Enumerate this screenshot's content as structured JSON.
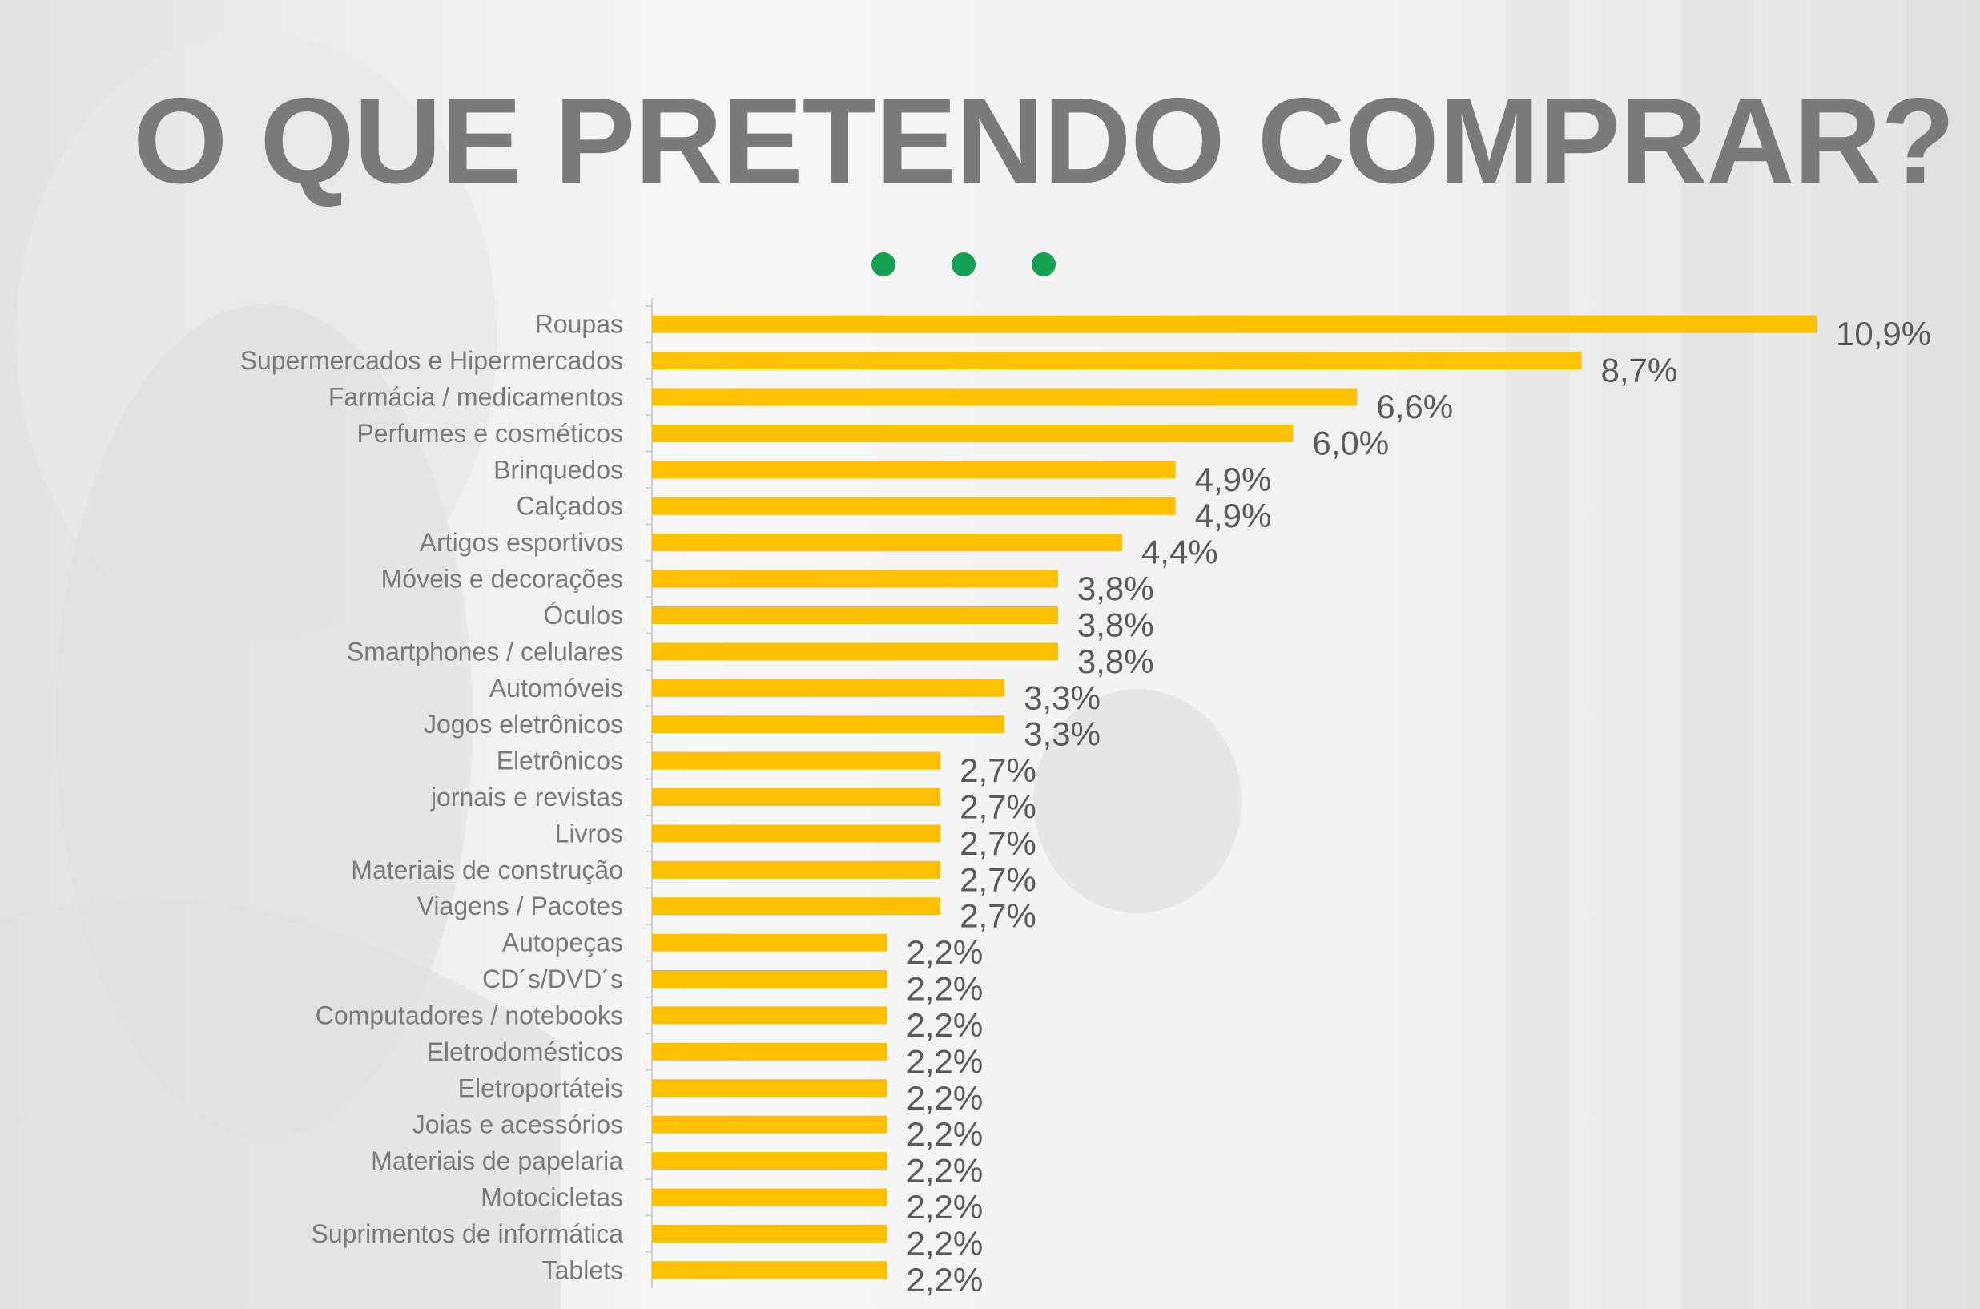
{
  "title": "O QUE PRETENDO COMPRAR?",
  "colors": {
    "bar": "#ffc000",
    "title": "#7a7a7a",
    "category_label": "#7a7a7a",
    "value_label": "#5a5a5a",
    "dots": "#14a052"
  },
  "chart_data": {
    "type": "bar",
    "orientation": "horizontal",
    "title": "",
    "xlabel": "",
    "ylabel": "",
    "xlim": [
      0,
      10.9
    ],
    "grid": false,
    "legend": "none",
    "categories": [
      "Roupas",
      "Supermercados e Hipermercados",
      "Farmácia / medicamentos",
      "Perfumes e cosméticos",
      "Brinquedos",
      "Calçados",
      "Artigos esportivos",
      "Móveis e decorações",
      "Óculos",
      "Smartphones / celulares",
      "Automóveis",
      "Jogos eletrônicos",
      "Eletrônicos",
      "jornais e revistas",
      "Livros",
      "Materiais de construção",
      "Viagens / Pacotes",
      "Autopeças",
      "CD´s/DVD´s",
      "Computadores / notebooks",
      "Eletrodomésticos",
      "Eletroportáteis",
      "Joias e acessórios",
      "Materiais de papelaria",
      "Motocicletas",
      "Suprimentos de informática",
      "Tablets"
    ],
    "values": [
      10.9,
      8.7,
      6.6,
      6.0,
      4.9,
      4.9,
      4.4,
      3.8,
      3.8,
      3.8,
      3.3,
      3.3,
      2.7,
      2.7,
      2.7,
      2.7,
      2.7,
      2.2,
      2.2,
      2.2,
      2.2,
      2.2,
      2.2,
      2.2,
      2.2,
      2.2,
      2.2
    ],
    "value_labels": [
      "10,9%",
      "8,7%",
      "6,6%",
      "6,0%",
      "4,9%",
      "4,9%",
      "4,4%",
      "3,8%",
      "3,8%",
      "3,8%",
      "3,3%",
      "3,3%",
      "2,7%",
      "2,7%",
      "2,7%",
      "2,7%",
      "2,7%",
      "2,2%",
      "2,2%",
      "2,2%",
      "2,2%",
      "2,2%",
      "2,2%",
      "2,2%",
      "2,2%",
      "2,2%",
      "2,2%"
    ]
  }
}
